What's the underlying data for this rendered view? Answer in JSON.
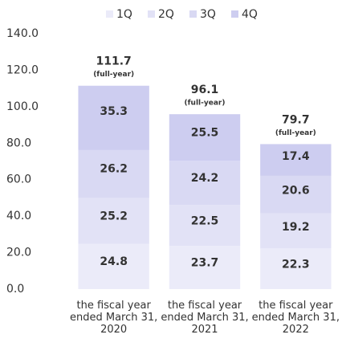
{
  "chart_data": {
    "type": "stacked-bar",
    "categories": [
      "the fiscal year ended March 31, 2020",
      "the fiscal year ended March 31, 2021",
      "the fiscal year ended March 31, 2022"
    ],
    "series": [
      {
        "name": "1Q",
        "color": "#ebebf9",
        "values": [
          24.8,
          23.7,
          22.3
        ]
      },
      {
        "name": "2Q",
        "color": "#e2e2f6",
        "values": [
          25.2,
          22.5,
          19.2
        ]
      },
      {
        "name": "3Q",
        "color": "#d9d9f3",
        "values": [
          26.2,
          24.2,
          20.6
        ]
      },
      {
        "name": "4Q",
        "color": "#cdcdf0",
        "values": [
          35.3,
          25.5,
          17.4
        ]
      }
    ],
    "totals": [
      111.7,
      96.1,
      79.7
    ],
    "total_note": "(full-year)",
    "ylim": [
      0,
      140
    ],
    "yticks": [
      {
        "value": 0,
        "label": "0.0"
      },
      {
        "value": 20,
        "label": "20.0"
      },
      {
        "value": 40,
        "label": "40.0"
      },
      {
        "value": 60,
        "label": "60.0"
      },
      {
        "value": 80,
        "label": "80.0"
      },
      {
        "value": 100,
        "label": "100.0"
      },
      {
        "value": 120,
        "label": "120.0"
      },
      {
        "value": 140,
        "label": "140.0"
      }
    ],
    "legend": "top"
  }
}
